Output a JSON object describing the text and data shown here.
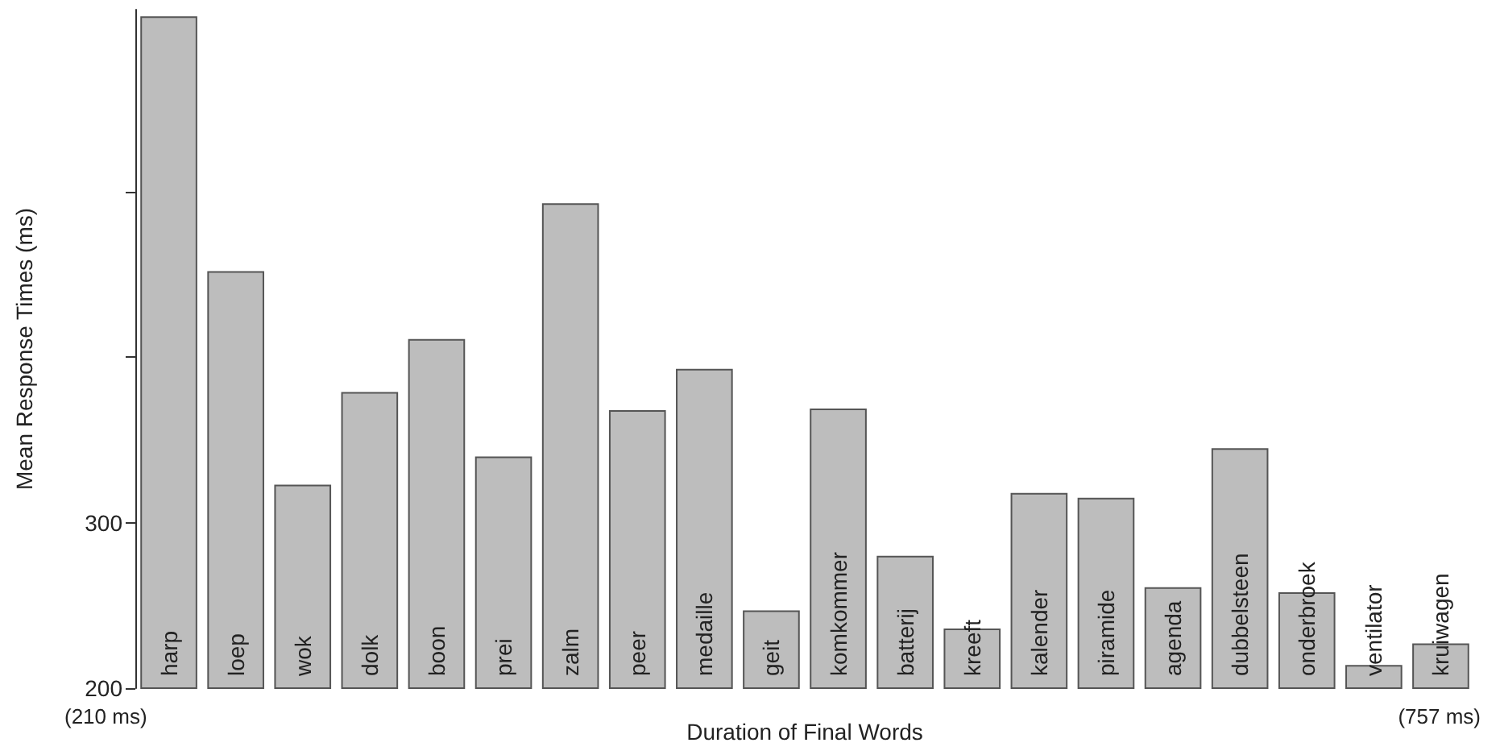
{
  "chart_data": {
    "type": "bar",
    "xlabel": "Duration of Final Words",
    "ylabel": "Mean Response Times (ms)",
    "categories": [
      "harp",
      "loep",
      "wok",
      "dolk",
      "boon",
      "prei",
      "zalm",
      "peer",
      "medaille",
      "geit",
      "komkommer",
      "batterij",
      "kreeft",
      "kalender",
      "piramide",
      "agenda",
      "dubbelsteen",
      "onderbroek",
      "ventilator",
      "kruiwagen"
    ],
    "values": [
      606,
      452,
      323,
      379,
      411,
      340,
      493,
      368,
      393,
      247,
      369,
      280,
      236,
      318,
      315,
      261,
      345,
      258,
      214,
      227
    ],
    "color": "#bdbdbd",
    "ylim": [
      200,
      610
    ],
    "yticks": [
      200,
      300,
      {
        "value": 400,
        "label": null
      },
      {
        "value": 500,
        "label": null
      }
    ],
    "annotations": [
      "(210 ms)",
      "(757 ms)"
    ],
    "grid": false
  }
}
